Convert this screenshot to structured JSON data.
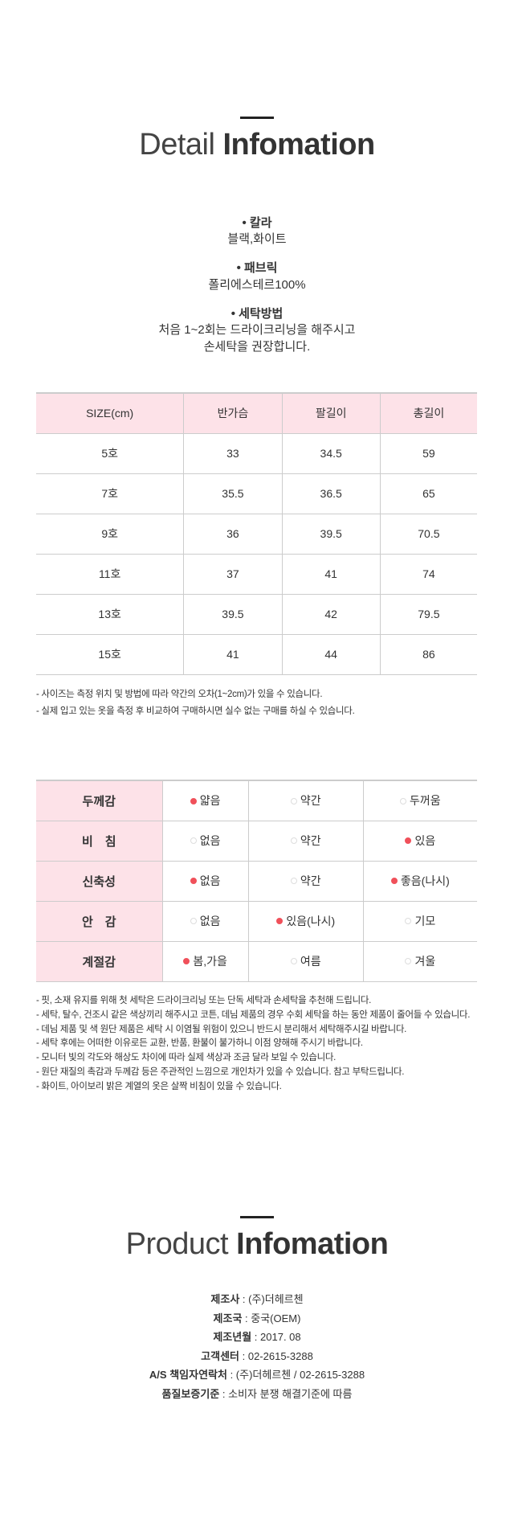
{
  "detail": {
    "title_light": "Detail",
    "title_bold": "Infomation",
    "bullets": [
      {
        "label": "칼라",
        "lines": [
          "블랙,화이트"
        ]
      },
      {
        "label": "패브릭",
        "lines": [
          "폴리에스테르100%"
        ]
      },
      {
        "label": "세탁방법",
        "lines": [
          "처음 1~2회는 드라이크리닝을 해주시고",
          "손세탁을 권장합니다."
        ]
      }
    ]
  },
  "size_table": {
    "headers": [
      "SIZE(cm)",
      "반가슴",
      "팔길이",
      "총길이"
    ],
    "rows": [
      [
        "5호",
        "33",
        "34.5",
        "59"
      ],
      [
        "7호",
        "35.5",
        "36.5",
        "65"
      ],
      [
        "9호",
        "36",
        "39.5",
        "70.5"
      ],
      [
        "11호",
        "37",
        "41",
        "74"
      ],
      [
        "13호",
        "39.5",
        "42",
        "79.5"
      ],
      [
        "15호",
        "41",
        "44",
        "86"
      ]
    ]
  },
  "size_notes": [
    "- 사이즈는 측정 위치 및 방법에 따라 약간의 오차(1~2cm)가 있을 수 있습니다.",
    "- 실제 입고 있는 옷을 측정 후 비교하여 구매하시면 실수 없는 구매를 하실 수 있습니다."
  ],
  "feel_table": {
    "rows": [
      {
        "label": "두께감",
        "options": [
          "얇음",
          "약간",
          "두꺼움"
        ],
        "selected": [
          true,
          false,
          false
        ]
      },
      {
        "label": "비　침",
        "options": [
          "없음",
          "약간",
          "있음"
        ],
        "selected": [
          false,
          false,
          true
        ]
      },
      {
        "label": "신축성",
        "options": [
          "없음",
          "약간",
          "좋음(나시)"
        ],
        "selected": [
          true,
          false,
          true
        ]
      },
      {
        "label": "안　감",
        "options": [
          "없음",
          "있음(나시)",
          "기모"
        ],
        "selected": [
          false,
          true,
          false
        ]
      },
      {
        "label": "계절감",
        "options": [
          "봄,가을",
          "여름",
          "겨울"
        ],
        "selected": [
          true,
          false,
          false
        ]
      }
    ]
  },
  "care_notes": [
    "- 핏, 소재 유지를 위해 첫 세탁은 드라이크리닝 또는 단독 세탁과 손세탁을 추천해 드립니다.",
    "- 세탁, 탈수, 건조시 같은 색상끼리 해주시고 코튼, 데님 제품의 경우 수회 세탁을 하는 동안 제품이 줄어들 수 있습니다.",
    "- 데님 제품 및 색 원단 제품은 세탁 시 이염될 위험이 있으니 반드시 분리해서 세탁해주시길 바랍니다.",
    "- 세탁 후에는 어떠한 이유로든 교환, 반품, 환불이 불가하니 이점 양해해 주시기 바랍니다.",
    "- 모니터 빛의 각도와 해상도 차이에 따라 실제 색상과 조금 달라 보일 수 있습니다.",
    "- 원단 재질의 촉감과 두께감 등은 주관적인 느낌으로 개인차가 있을 수 있습니다. 참고 부탁드립니다.",
    "- 화이트, 아이보리 밝은 계열의 옷은 살짝 비침이 있을 수 있습니다."
  ],
  "product": {
    "title_light": "Product",
    "title_bold": "Infomation",
    "items": [
      {
        "label": "제조사",
        "value": " : (주)더헤르첸"
      },
      {
        "label": "제조국",
        "value": " : 중국(OEM)"
      },
      {
        "label": "제조년월",
        "value": " : 2017. 08"
      },
      {
        "label": "고객센터",
        "value": " : 02-2615-3288"
      },
      {
        "label": "A/S 책임자연락처",
        "value": " : (주)더헤르첸 / 02-2615-3288"
      },
      {
        "label": "품질보증기준",
        "value": " : 소비자 분쟁 해결기준에 따름"
      }
    ]
  },
  "colors": {
    "accent": "#f0505a",
    "header_bg": "#fde2e8"
  }
}
